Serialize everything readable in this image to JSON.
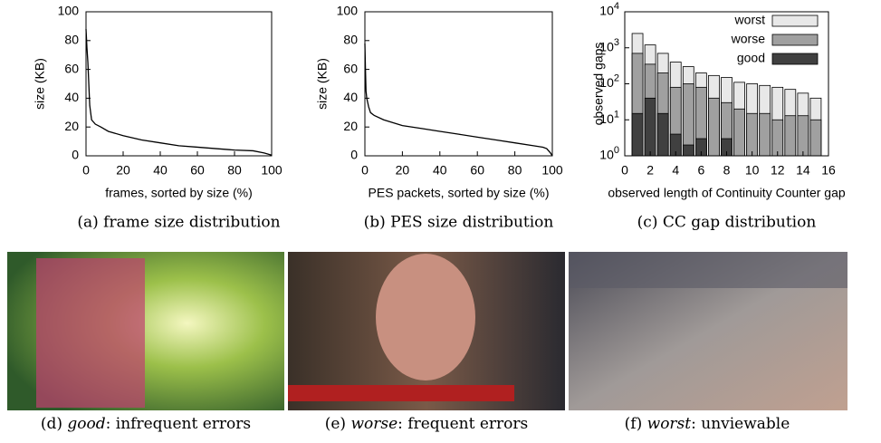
{
  "chart_data": [
    {
      "type": "line",
      "caption": "(a) frame size distribution",
      "xlabel": "frames, sorted by size (%)",
      "ylabel": "size (KB)",
      "x": [
        0,
        0.5,
        1,
        1.5,
        2,
        3,
        5,
        8,
        12,
        20,
        30,
        40,
        50,
        60,
        70,
        80,
        90,
        96,
        100
      ],
      "values": [
        88,
        75,
        65,
        50,
        35,
        25,
        22,
        20,
        17,
        14,
        11,
        9,
        7,
        6,
        5,
        4,
        3.5,
        2,
        0.5
      ],
      "color": "#000000",
      "xlim": [
        0,
        100
      ],
      "ylim": [
        0,
        100
      ],
      "xticks": [
        0,
        20,
        40,
        60,
        80,
        100
      ],
      "yticks": [
        0,
        20,
        40,
        60,
        80,
        100
      ]
    },
    {
      "type": "line",
      "caption": "(b) PES size distribution",
      "xlabel": "PES packets, sorted by size (%)",
      "ylabel": "size (KB)",
      "x": [
        0,
        0.3,
        0.6,
        1,
        2,
        3,
        5,
        10,
        20,
        30,
        40,
        50,
        60,
        70,
        80,
        90,
        95,
        97,
        99,
        100
      ],
      "values": [
        78,
        60,
        45,
        40,
        34,
        30,
        28,
        25,
        21,
        19,
        17,
        15,
        13,
        11,
        9,
        7,
        6,
        5,
        2,
        0
      ],
      "color": "#000000",
      "xlim": [
        0,
        100
      ],
      "ylim": [
        0,
        100
      ],
      "xticks": [
        0,
        20,
        40,
        60,
        80,
        100
      ],
      "yticks": [
        0,
        20,
        40,
        60,
        80,
        100
      ]
    },
    {
      "type": "bar",
      "caption": "(c) CC gap distribution",
      "xlabel": "observed length of Continuity Counter gap",
      "ylabel": "observed gaps",
      "log_y": true,
      "legend": "top-right",
      "x": [
        1,
        2,
        3,
        4,
        5,
        6,
        7,
        8,
        9,
        10,
        11,
        12,
        13,
        14,
        15
      ],
      "series": [
        {
          "name": "worst",
          "color": "#e8e8e8",
          "values": [
            2500,
            1200,
            700,
            400,
            300,
            200,
            170,
            150,
            110,
            100,
            90,
            80,
            70,
            55,
            40
          ]
        },
        {
          "name": "worse",
          "color": "#a0a0a0",
          "values": [
            700,
            350,
            200,
            80,
            100,
            80,
            40,
            30,
            20,
            15,
            15,
            10,
            13,
            13,
            10
          ]
        },
        {
          "name": "good",
          "color": "#404040",
          "values": [
            15,
            40,
            15,
            4,
            2,
            3,
            null,
            3,
            null,
            null,
            null,
            null,
            null,
            null,
            null
          ]
        }
      ],
      "xlim": [
        0,
        16
      ],
      "ylim": [
        1,
        10000
      ],
      "xticks": [
        0,
        2,
        4,
        6,
        8,
        10,
        12,
        14,
        16
      ],
      "yticks": [
        {
          "value": 1,
          "label": "10^0"
        },
        {
          "value": 10,
          "label": "10^1"
        },
        {
          "value": 100,
          "label": "10^2"
        },
        {
          "value": 1000,
          "label": "10^3"
        },
        {
          "value": 10000,
          "label": "10^4"
        }
      ]
    }
  ],
  "images": [
    {
      "prefix": "(d)",
      "emphasis": "good",
      "rest": ": infrequent errors"
    },
    {
      "prefix": "(e)",
      "emphasis": "worse",
      "rest": ": frequent errors"
    },
    {
      "prefix": "(f)",
      "emphasis": "worst",
      "rest": ": unviewable"
    }
  ]
}
